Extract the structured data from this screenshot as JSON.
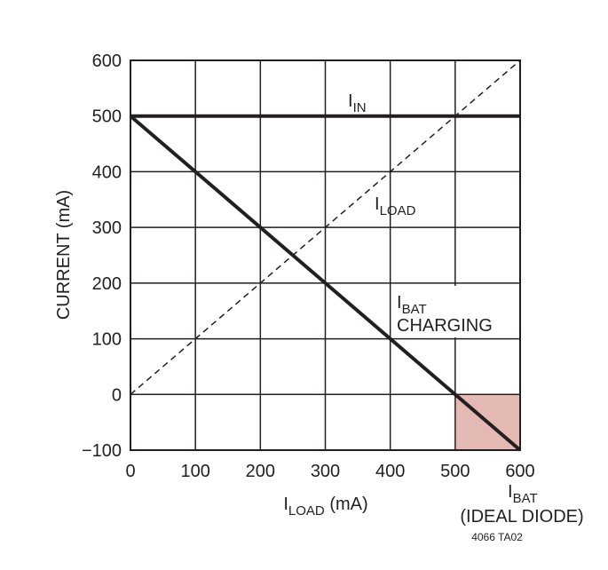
{
  "chart_data": {
    "type": "line",
    "x_label": {
      "main": "I",
      "sub": "LOAD",
      "rest": " (mA)"
    },
    "y_label": "CURRENT (mA)",
    "xlim": [
      0,
      600
    ],
    "xticks": [
      0,
      100,
      200,
      300,
      400,
      500,
      600
    ],
    "ylim": [
      -100,
      600
    ],
    "yticks": [
      {
        "value": -100,
        "label": "−100"
      },
      0,
      100,
      200,
      300,
      400,
      500,
      600
    ],
    "grid": true,
    "x": [
      0,
      600
    ],
    "series": [
      {
        "name": {
          "main": "I",
          "sub": "IN"
        },
        "color": "#231f20",
        "style": "solid",
        "values": [
          500,
          500
        ]
      },
      {
        "name": {
          "main": "I",
          "sub": "LOAD"
        },
        "color": "#231f20",
        "style": "dashed",
        "values": [
          0,
          600
        ]
      },
      {
        "name": {
          "main": "I",
          "sub": "BAT",
          "note": "CHARGING"
        },
        "color": "#231f20",
        "style": "solid",
        "values": [
          500,
          -100
        ]
      }
    ],
    "shaded_region": {
      "xlim": [
        500,
        600
      ],
      "ylim": [
        -100,
        0
      ],
      "color": "#e5b9b3",
      "label": {
        "main": "I",
        "sub": "BAT",
        "note": "(IDEAL DIODE)"
      }
    },
    "figure_id": "4066 TA02"
  }
}
